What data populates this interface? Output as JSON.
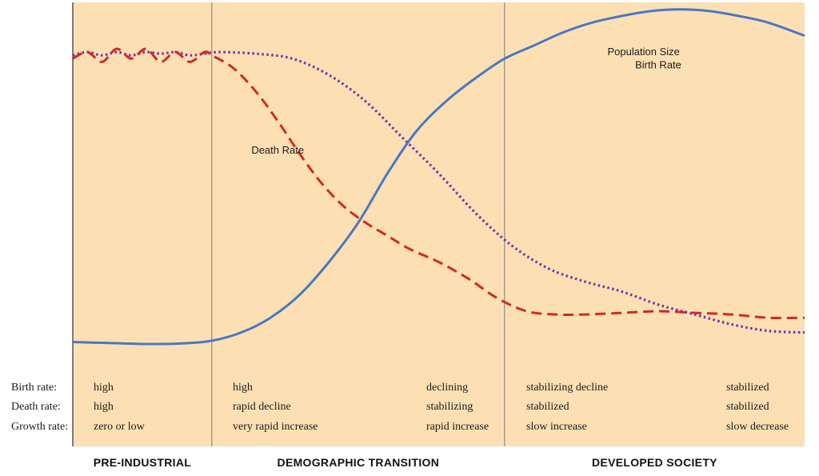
{
  "chart_data": {
    "type": "line",
    "x_domain": [
      0,
      100
    ],
    "y_domain": [
      0,
      100
    ],
    "colors": {
      "background": "#fce0b4",
      "birth_rate": "#7b2fa8",
      "death_rate": "#d02a25",
      "population": "#4a78c2",
      "stage_divider": "#7a7a7a"
    },
    "stage_boundaries": [
      19,
      59
    ],
    "stages": [
      {
        "label": "PRE-INDUSTRIAL",
        "x_range": [
          0,
          19
        ]
      },
      {
        "label": "DEMOGRAPHIC TRANSITION",
        "x_range": [
          19,
          59
        ]
      },
      {
        "label": "DEVELOPED SOCIETY",
        "x_range": [
          59,
          100
        ]
      }
    ],
    "series": [
      {
        "name": "Birth Rate",
        "style": "dotted",
        "x": [
          0,
          2,
          4,
          6,
          8,
          10,
          12,
          14,
          16,
          18,
          20,
          25,
          30,
          35,
          40,
          45,
          50,
          55,
          60,
          65,
          70,
          75,
          80,
          85,
          90,
          95,
          100
        ],
        "y": [
          88,
          89,
          88,
          89,
          88,
          89,
          88.5,
          89,
          88,
          88.5,
          89,
          88.5,
          87,
          82,
          74,
          63,
          52,
          40,
          30,
          23,
          19,
          16,
          12,
          9,
          6,
          4,
          3.5
        ],
        "label_at": [
          80,
          84
        ]
      },
      {
        "name": "Death Rate",
        "style": "dashed",
        "x": [
          0,
          2,
          4,
          6,
          8,
          10,
          12,
          14,
          16,
          18,
          19,
          22,
          25,
          28,
          31,
          34,
          37,
          40,
          43,
          46,
          50,
          54,
          58,
          62,
          66,
          70,
          75,
          80,
          85,
          90,
          95,
          100
        ],
        "y": [
          87,
          89,
          86,
          90,
          87,
          90,
          86,
          89,
          86,
          89,
          88,
          84,
          77,
          68,
          58,
          49,
          42,
          37,
          33,
          29,
          25,
          20,
          14,
          10,
          9,
          9,
          9.5,
          10,
          9.5,
          9,
          8,
          8
        ],
        "label_at": [
          28,
          58
        ]
      },
      {
        "name": "Population Size",
        "style": "solid",
        "x": [
          0,
          5,
          10,
          15,
          19,
          23,
          27,
          31,
          35,
          39,
          43,
          47,
          51,
          55,
          59,
          63,
          67,
          71,
          75,
          79,
          83,
          87,
          91,
          95,
          100
        ],
        "y": [
          0.6,
          0.3,
          0,
          0.2,
          1,
          3.5,
          8,
          15,
          25,
          37,
          52,
          65,
          74,
          81,
          87,
          91,
          95,
          98,
          100,
          101.5,
          102,
          101.5,
          100,
          98,
          94
        ],
        "label_at": [
          78,
          88
        ]
      }
    ],
    "rows": [
      {
        "label": "Birth rate:",
        "cells": [
          "high",
          "high",
          "declining",
          "stabilizing decline",
          "stabilized"
        ]
      },
      {
        "label": "Death rate:",
        "cells": [
          "high",
          "rapid decline",
          "stabilizing",
          "stabilized",
          "stabilized"
        ]
      },
      {
        "label": "Growth rate:",
        "cells": [
          "zero or low",
          "very rapid increase",
          "rapid increase",
          "slow increase",
          "slow decrease"
        ]
      }
    ],
    "title": "",
    "xlabel": "",
    "ylabel": "",
    "grid": false
  }
}
